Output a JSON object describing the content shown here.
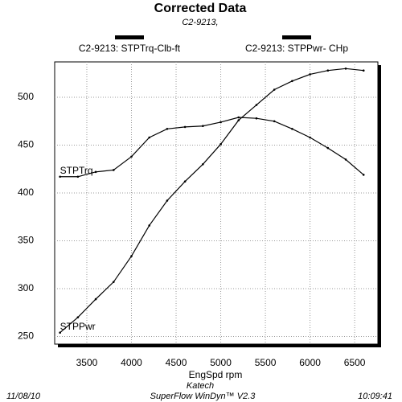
{
  "chart_data": {
    "type": "line",
    "title": "Corrected Data",
    "subtitle": "C2-9213,",
    "x": [
      3200,
      3400,
      3600,
      3800,
      4000,
      4200,
      4400,
      4600,
      4800,
      5000,
      5200,
      5400,
      5600,
      5800,
      6000,
      6200,
      6400,
      6600
    ],
    "series": [
      {
        "name": "STPTrq",
        "legend": "C2-9213: STPTrq-Clb-ft",
        "color": "#000000",
        "values": [
          417,
          417,
          422,
          424,
          438,
          458,
          467,
          469,
          470,
          474,
          479,
          478,
          475,
          467,
          458,
          447,
          435,
          419
        ]
      },
      {
        "name": "STPPwr",
        "legend": "C2-9213: STPPwr- CHp",
        "color": "#000000",
        "values": [
          254,
          270,
          289,
          307,
          334,
          366,
          392,
          412,
          430,
          451,
          476,
          492,
          508,
          517,
          524,
          528,
          530,
          528
        ]
      }
    ],
    "xlim": [
      3140,
      6760
    ],
    "ylim": [
      242,
      537
    ],
    "xticks": [
      3500,
      4000,
      4500,
      5000,
      5500,
      6000,
      6500
    ],
    "yticks": [
      250,
      300,
      350,
      400,
      450,
      500
    ],
    "grid": true,
    "xlabel": "EngSpd  rpm",
    "note": "Katech",
    "footer": {
      "left": "11/08/10",
      "center": "SuperFlow WinDyn™ V2.3",
      "right": "10:09:41"
    }
  }
}
